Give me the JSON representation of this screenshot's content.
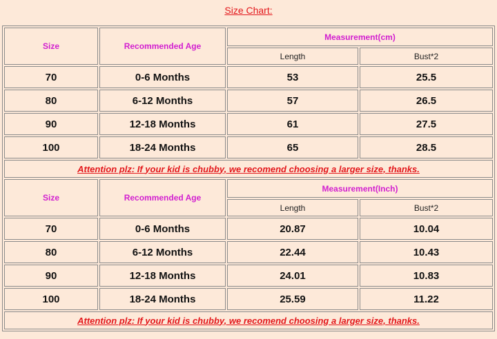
{
  "title": "Size Chart:",
  "tables": [
    {
      "headers": {
        "size": "Size",
        "age": "Recommended Age",
        "measurement": "Measurement(cm)",
        "length": "Length",
        "bust": "Bust*2"
      },
      "rows": [
        [
          70,
          "0-6 Months",
          53,
          25.5
        ],
        [
          80,
          "6-12 Months",
          57,
          26.5
        ],
        [
          90,
          "12-18 Months",
          61,
          27.5
        ],
        [
          100,
          "18-24 Months",
          65,
          28.5
        ]
      ],
      "note": "Attention plz: If your kid is chubby, we recomend choosing a larger size, thanks."
    },
    {
      "headers": {
        "size": "Size",
        "age": "Recommended Age",
        "measurement": "Measurement(Inch)",
        "length": "Length",
        "bust": "Bust*2"
      },
      "rows": [
        [
          70,
          "0-6 Months",
          20.87,
          10.04
        ],
        [
          80,
          "6-12 Months",
          22.44,
          10.43
        ],
        [
          90,
          "12-18 Months",
          24.01,
          10.83
        ],
        [
          100,
          "18-24 Months",
          25.59,
          11.22
        ]
      ],
      "note": "Attention plz: If your kid is chubby, we recomend choosing a larger size, thanks."
    }
  ]
}
